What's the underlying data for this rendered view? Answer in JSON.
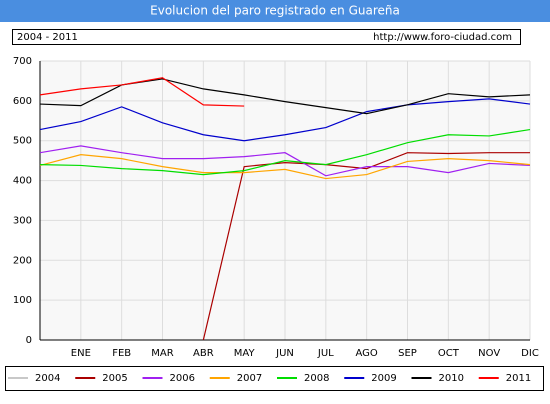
{
  "chart_data": {
    "type": "line",
    "title": "Evolucion del paro registrado en Guareña",
    "subtitle": "2004 - 2011",
    "source": "http://www.foro-ciudad.com",
    "categories": [
      null,
      "ENE",
      "FEB",
      "MAR",
      "ABR",
      "MAY",
      "JUN",
      "JUL",
      "AGO",
      "SEP",
      "OCT",
      "NOV",
      "DIC"
    ],
    "series": [
      {
        "name": "2004",
        "color": "#c8c8c8",
        "values": [
          null,
          null,
          null,
          null,
          null,
          null,
          null,
          null,
          null,
          null,
          null,
          null,
          null
        ]
      },
      {
        "name": "2005",
        "color": "#aa0000",
        "values": [
          null,
          null,
          null,
          null,
          0,
          435,
          445,
          440,
          430,
          470,
          468,
          470,
          470
        ]
      },
      {
        "name": "2006",
        "color": "#a020f0",
        "values": [
          470,
          487,
          470,
          455,
          455,
          460,
          470,
          412,
          435,
          435,
          420,
          443,
          438
        ]
      },
      {
        "name": "2007",
        "color": "#ffa500",
        "values": [
          438,
          465,
          455,
          435,
          420,
          420,
          428,
          405,
          415,
          448,
          455,
          450,
          440
        ]
      },
      {
        "name": "2008",
        "color": "#00dd00",
        "values": [
          440,
          438,
          430,
          425,
          415,
          425,
          450,
          440,
          465,
          495,
          515,
          512,
          528
        ]
      },
      {
        "name": "2009",
        "color": "#0000cc",
        "values": [
          528,
          548,
          585,
          545,
          515,
          500,
          515,
          533,
          573,
          590,
          598,
          605,
          592
        ]
      },
      {
        "name": "2010",
        "color": "#000000",
        "values": [
          592,
          588,
          640,
          655,
          630,
          615,
          598,
          583,
          568,
          590,
          618,
          610,
          615
        ]
      },
      {
        "name": "2011",
        "color": "#ff0000",
        "values": [
          615,
          630,
          640,
          658,
          590,
          587,
          null,
          null,
          null,
          null,
          null,
          null,
          null
        ]
      }
    ],
    "ylim": [
      0,
      700
    ],
    "yticks": [
      0,
      100,
      200,
      300,
      400,
      500,
      600,
      700
    ],
    "grid": true
  }
}
